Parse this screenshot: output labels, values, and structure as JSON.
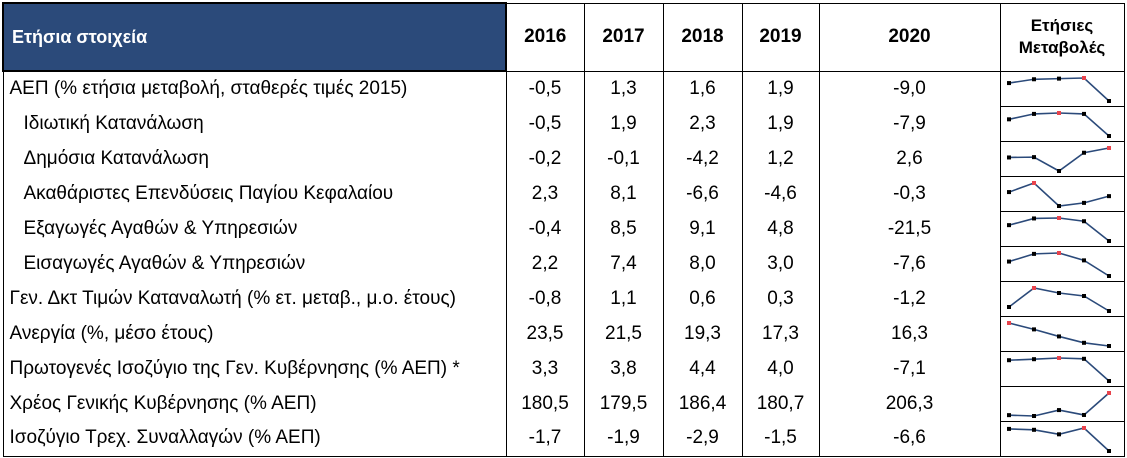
{
  "header": {
    "title": "Ετήσια στοιχεία",
    "years": [
      "2016",
      "2017",
      "2018",
      "2019",
      "2020"
    ],
    "spark_title_line1": "Ετήσιες",
    "spark_title_line2": "Μεταβολές"
  },
  "colors": {
    "header_bg": "#2b4a7a",
    "line": "#2b4a7a",
    "marker": "#000000",
    "highlight_marker": "#e8434c"
  },
  "rows": [
    {
      "label": "ΑΕΠ (% ετήσια μεταβολή, σταθερές τιμές 2015)",
      "indent": false,
      "values": [
        "-0,5",
        "1,3",
        "1,6",
        "1,9",
        "-9,0"
      ],
      "trend": [
        -0.5,
        1.3,
        1.6,
        1.9,
        -9.0
      ]
    },
    {
      "label": "Ιδιωτική Κατανάλωση",
      "indent": true,
      "values": [
        "-0,5",
        "1,9",
        "2,3",
        "1,9",
        "-7,9"
      ],
      "trend": [
        -0.5,
        1.9,
        2.3,
        1.9,
        -7.9
      ]
    },
    {
      "label": "Δημόσια Κατανάλωση",
      "indent": true,
      "values": [
        "-0,2",
        "-0,1",
        "-4,2",
        "1,2",
        "2,6"
      ],
      "trend": [
        -0.2,
        -0.1,
        -4.2,
        1.2,
        2.6
      ]
    },
    {
      "label": "Ακαθάριστες Επενδύσεις Παγίου Κεφαλαίου",
      "indent": true,
      "values": [
        "2,3",
        "8,1",
        "-6,6",
        "-4,6",
        "-0,3"
      ],
      "trend": [
        2.3,
        8.1,
        -6.6,
        -4.6,
        -0.3
      ]
    },
    {
      "label": "Εξαγωγές Αγαθών & Υπηρεσιών",
      "indent": true,
      "values": [
        "-0,4",
        "8,5",
        "9,1",
        "4,8",
        "-21,5"
      ],
      "trend": [
        -0.4,
        8.5,
        9.1,
        4.8,
        -21.5
      ]
    },
    {
      "label": "Εισαγωγές Αγαθών & Υπηρεσιών",
      "indent": true,
      "values": [
        "2,2",
        "7,4",
        "8,0",
        "3,0",
        "-7,6"
      ],
      "trend": [
        2.2,
        7.4,
        8.0,
        3.0,
        -7.6
      ]
    },
    {
      "label": "Γεν. Δκτ Τιμών Καταναλωτή (% ετ. μεταβ., μ.ο. έτους)",
      "indent": false,
      "values": [
        "-0,8",
        "1,1",
        "0,6",
        "0,3",
        "-1,2"
      ],
      "trend": [
        -0.8,
        1.1,
        0.6,
        0.3,
        -1.2
      ]
    },
    {
      "label": "Ανεργία (%, μέσο έτους)",
      "indent": false,
      "values": [
        "23,5",
        "21,5",
        "19,3",
        "17,3",
        "16,3"
      ],
      "trend": [
        23.5,
        21.5,
        19.3,
        17.3,
        16.3
      ]
    },
    {
      "label": "Πρωτογενές Ισοζύγιο της Γεν. Κυβέρνησης (% ΑΕΠ) *",
      "indent": false,
      "values": [
        "3,3",
        "3,8",
        "4,4",
        "4,0",
        "-7,1"
      ],
      "trend": [
        3.3,
        3.8,
        4.4,
        4.0,
        -7.1
      ]
    },
    {
      "label": "Χρέος Γενικής Κυβέρνησης (% ΑΕΠ)",
      "indent": false,
      "values": [
        "180,5",
        "179,5",
        "186,4",
        "180,7",
        "206,3"
      ],
      "trend": [
        180.5,
        179.5,
        186.4,
        180.7,
        206.3
      ]
    },
    {
      "label": "Ισοζύγιο Τρεχ. Συναλλαγών (% ΑΕΠ)",
      "indent": false,
      "values": [
        "-1,7",
        "-1,9",
        "-2,9",
        "-1,5",
        "-6,6"
      ],
      "trend": [
        -1.7,
        -1.9,
        -2.9,
        -1.5,
        -6.6
      ]
    }
  ]
}
